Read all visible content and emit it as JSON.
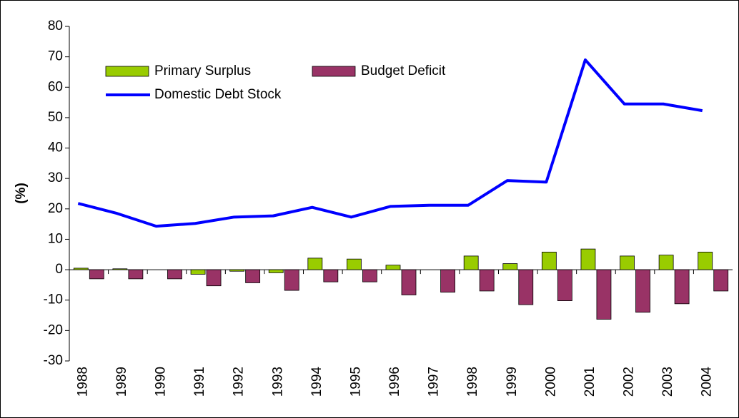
{
  "chart_data": {
    "type": "bar_line",
    "y_label": "(%)",
    "categories": [
      "1988",
      "1989",
      "1990",
      "1991",
      "1992",
      "1993",
      "1994",
      "1995",
      "1996",
      "1997",
      "1998",
      "1999",
      "2000",
      "2001",
      "2002",
      "2003",
      "2004"
    ],
    "series": [
      {
        "name": "Primary Surplus",
        "color": "#99cc00",
        "type": "bar",
        "values": [
          0.5,
          0.3,
          0,
          -1.5,
          -0.5,
          -1,
          3.8,
          3.5,
          1.5,
          0,
          4.5,
          2,
          5.8,
          6.8,
          4.5,
          4.8,
          5.8
        ]
      },
      {
        "name": "Budget Deficit",
        "color": "#993366",
        "type": "bar",
        "values": [
          -3,
          -3,
          -3,
          -5.3,
          -4.3,
          -6.8,
          -4,
          -4,
          -8.3,
          -7.4,
          -7,
          -11.5,
          -10.2,
          -16.3,
          -14,
          -11.2,
          -7
        ]
      },
      {
        "name": "Domestic Debt Stock",
        "color": "#0000ff",
        "type": "line",
        "values": [
          21.8,
          18.5,
          14.3,
          15.2,
          17.3,
          17.7,
          20.5,
          17.3,
          20.8,
          21.2,
          21.2,
          29.3,
          28.8,
          69,
          54.5,
          54.5,
          52.3
        ]
      }
    ],
    "ylim": [
      -30,
      80
    ],
    "yticks": [
      -30,
      -20,
      -10,
      0,
      10,
      20,
      30,
      40,
      50,
      60,
      70,
      80
    ]
  }
}
